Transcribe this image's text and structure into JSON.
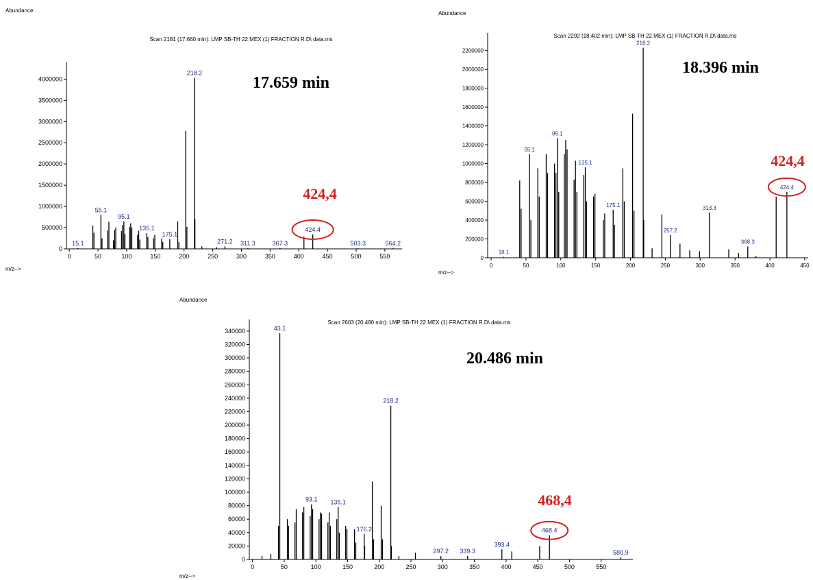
{
  "colors": {
    "axis": "#000000",
    "peak": "#000000",
    "label": "#1a2a8a",
    "highlight": "#d42020"
  },
  "chart_data": [
    {
      "type": "bar",
      "title": "Scan 2181 (17.660 min): LMP SB-TH 22 MEX (1) FRACTION R.D\\ data.ms",
      "ylabel": "Abundance",
      "xlabel": "m/z-->",
      "time_annotation": "17.659 min",
      "highlight_label": "424,4",
      "highlight_mz": 424.4,
      "xlim": [
        -5,
        580
      ],
      "ylim": [
        0,
        4200000
      ],
      "xticks": [
        0,
        50,
        100,
        150,
        200,
        250,
        300,
        350,
        400,
        450,
        500,
        550
      ],
      "yticks": [
        0,
        500000,
        1000000,
        1500000,
        2000000,
        2500000,
        3000000,
        3500000,
        4000000
      ],
      "peaks": [
        [
          15.1,
          20000
        ],
        [
          41,
          550000
        ],
        [
          43,
          380000
        ],
        [
          55.1,
          800000
        ],
        [
          57,
          250000
        ],
        [
          67,
          430000
        ],
        [
          69,
          640000
        ],
        [
          77,
          200000
        ],
        [
          79,
          450000
        ],
        [
          81,
          500000
        ],
        [
          91,
          420000
        ],
        [
          93,
          560000
        ],
        [
          95.1,
          650000
        ],
        [
          97,
          350000
        ],
        [
          105,
          520000
        ],
        [
          107,
          600000
        ],
        [
          109,
          500000
        ],
        [
          119,
          330000
        ],
        [
          121,
          430000
        ],
        [
          123,
          220000
        ],
        [
          135.1,
          370000
        ],
        [
          137,
          280000
        ],
        [
          147,
          250000
        ],
        [
          149,
          330000
        ],
        [
          161,
          240000
        ],
        [
          163,
          160000
        ],
        [
          175.1,
          230000
        ],
        [
          189,
          650000
        ],
        [
          191,
          160000
        ],
        [
          203,
          2780000
        ],
        [
          205,
          520000
        ],
        [
          218.2,
          4030000
        ],
        [
          219,
          700000
        ],
        [
          231,
          60000
        ],
        [
          257,
          40000
        ],
        [
          271.2,
          60000
        ],
        [
          311.3,
          20000
        ],
        [
          367.3,
          20000
        ],
        [
          409,
          290000
        ],
        [
          424.4,
          340000
        ],
        [
          503.3,
          15000
        ],
        [
          564.2,
          15000
        ]
      ],
      "labels": [
        {
          "mz": 15.1,
          "text": "15.1"
        },
        {
          "mz": 55.1,
          "text": "55.1"
        },
        {
          "mz": 95.1,
          "text": "95.1"
        },
        {
          "mz": 135.1,
          "text": "135.1"
        },
        {
          "mz": 175.1,
          "text": "175.1"
        },
        {
          "mz": 218.2,
          "text": "218.2"
        },
        {
          "mz": 271.2,
          "text": "271.2"
        },
        {
          "mz": 311.3,
          "text": "311.3"
        },
        {
          "mz": 367.3,
          "text": "367.3"
        },
        {
          "mz": 424.4,
          "text": "424.4"
        },
        {
          "mz": 503.3,
          "text": "503.3"
        },
        {
          "mz": 564.2,
          "text": "564.2"
        }
      ]
    },
    {
      "type": "bar",
      "title": "Scan 2292 (18.402 min): LMP SB-TH 22 MEX (1) FRACTION R.D\\ data.ms",
      "ylabel": "Abundance",
      "xlabel": "m/z-->",
      "time_annotation": "18.396 min",
      "highlight_label": "424,4",
      "highlight_mz": 424.4,
      "xlim": [
        -5,
        455
      ],
      "ylim": [
        0,
        2300000
      ],
      "xticks": [
        0,
        50,
        100,
        150,
        200,
        250,
        300,
        350,
        400,
        450
      ],
      "yticks": [
        0,
        200000,
        400000,
        600000,
        800000,
        1000000,
        1200000,
        1400000,
        1600000,
        1800000,
        2000000,
        2200000
      ],
      "peaks": [
        [
          18.1,
          10000
        ],
        [
          41,
          820000
        ],
        [
          43,
          520000
        ],
        [
          55.1,
          1100000
        ],
        [
          57,
          400000
        ],
        [
          67,
          950000
        ],
        [
          69,
          650000
        ],
        [
          79,
          1100000
        ],
        [
          81,
          900000
        ],
        [
          91,
          1000000
        ],
        [
          93,
          900000
        ],
        [
          95.1,
          1270000
        ],
        [
          97,
          700000
        ],
        [
          105,
          1100000
        ],
        [
          107,
          1250000
        ],
        [
          109,
          1150000
        ],
        [
          119,
          830000
        ],
        [
          121,
          1030000
        ],
        [
          123,
          700000
        ],
        [
          133,
          880000
        ],
        [
          135.1,
          960000
        ],
        [
          137,
          600000
        ],
        [
          147,
          650000
        ],
        [
          149,
          680000
        ],
        [
          161,
          400000
        ],
        [
          163,
          470000
        ],
        [
          175.1,
          510000
        ],
        [
          177,
          350000
        ],
        [
          189,
          950000
        ],
        [
          191,
          600000
        ],
        [
          203,
          1530000
        ],
        [
          205,
          500000
        ],
        [
          218.2,
          2230000
        ],
        [
          219,
          400000
        ],
        [
          231,
          100000
        ],
        [
          245,
          460000
        ],
        [
          257.2,
          240000
        ],
        [
          271,
          150000
        ],
        [
          285,
          80000
        ],
        [
          299,
          70000
        ],
        [
          313.3,
          480000
        ],
        [
          341,
          90000
        ],
        [
          355,
          50000
        ],
        [
          368.3,
          120000
        ],
        [
          380,
          20000
        ],
        [
          409,
          650000
        ],
        [
          424.4,
          700000
        ]
      ],
      "labels": [
        {
          "mz": 18.1,
          "text": "18.1"
        },
        {
          "mz": 55.1,
          "text": "55.1"
        },
        {
          "mz": 95.1,
          "text": "95.1"
        },
        {
          "mz": 135.1,
          "text": "135.1"
        },
        {
          "mz": 175.1,
          "text": "175.1"
        },
        {
          "mz": 218.2,
          "text": "218.2"
        },
        {
          "mz": 257.2,
          "text": "257.2"
        },
        {
          "mz": 313.3,
          "text": "313.3"
        },
        {
          "mz": 368.3,
          "text": "368.3"
        },
        {
          "mz": 424.4,
          "text": "424.4"
        }
      ]
    },
    {
      "type": "bar",
      "title": "Scan 2603 (20.480 min): LMP SB-TH 22 MEX (1) FRACTION R.D\\ data.ms",
      "ylabel": "Abundance",
      "xlabel": "m/z-->",
      "time_annotation": "20.486 min",
      "highlight_label": "468,4",
      "highlight_mz": 468.4,
      "xlim": [
        -5,
        600
      ],
      "ylim": [
        0,
        345000
      ],
      "xticks": [
        0,
        50,
        100,
        150,
        200,
        250,
        300,
        350,
        400,
        450,
        500,
        550
      ],
      "yticks": [
        0,
        20000,
        40000,
        60000,
        80000,
        100000,
        120000,
        140000,
        160000,
        180000,
        200000,
        220000,
        240000,
        260000,
        280000,
        300000,
        320000,
        340000
      ],
      "peaks": [
        [
          15,
          5000
        ],
        [
          29,
          8000
        ],
        [
          41,
          50000
        ],
        [
          43.1,
          337000
        ],
        [
          55,
          60000
        ],
        [
          57,
          50000
        ],
        [
          67,
          55000
        ],
        [
          69,
          75000
        ],
        [
          79,
          70000
        ],
        [
          81,
          78000
        ],
        [
          91,
          65000
        ],
        [
          93.1,
          82000
        ],
        [
          95,
          75000
        ],
        [
          105,
          60000
        ],
        [
          107,
          70000
        ],
        [
          109,
          68000
        ],
        [
          119,
          55000
        ],
        [
          121,
          70000
        ],
        [
          123,
          50000
        ],
        [
          133,
          60000
        ],
        [
          135.1,
          78000
        ],
        [
          137,
          40000
        ],
        [
          147,
          50000
        ],
        [
          149,
          45000
        ],
        [
          161,
          45000
        ],
        [
          163,
          25000
        ],
        [
          176.2,
          38000
        ],
        [
          177,
          20000
        ],
        [
          189,
          116000
        ],
        [
          191,
          30000
        ],
        [
          203,
          80000
        ],
        [
          205,
          30000
        ],
        [
          218.2,
          229000
        ],
        [
          219,
          20000
        ],
        [
          231,
          5000
        ],
        [
          257,
          10000
        ],
        [
          297.2,
          5000
        ],
        [
          339.3,
          5000
        ],
        [
          393.4,
          15000
        ],
        [
          409,
          12000
        ],
        [
          453,
          20000
        ],
        [
          468.4,
          36000
        ],
        [
          580.9,
          3000
        ]
      ],
      "labels": [
        {
          "mz": 43.1,
          "text": "43.1"
        },
        {
          "mz": 93.1,
          "text": "93.1"
        },
        {
          "mz": 135.1,
          "text": "135.1"
        },
        {
          "mz": 176.2,
          "text": "176.2"
        },
        {
          "mz": 218.2,
          "text": "218.2"
        },
        {
          "mz": 297.2,
          "text": "297.2"
        },
        {
          "mz": 339.3,
          "text": "339.3"
        },
        {
          "mz": 393.4,
          "text": "393.4"
        },
        {
          "mz": 468.4,
          "text": "468.4"
        },
        {
          "mz": 580.9,
          "text": "580.9"
        }
      ]
    }
  ]
}
